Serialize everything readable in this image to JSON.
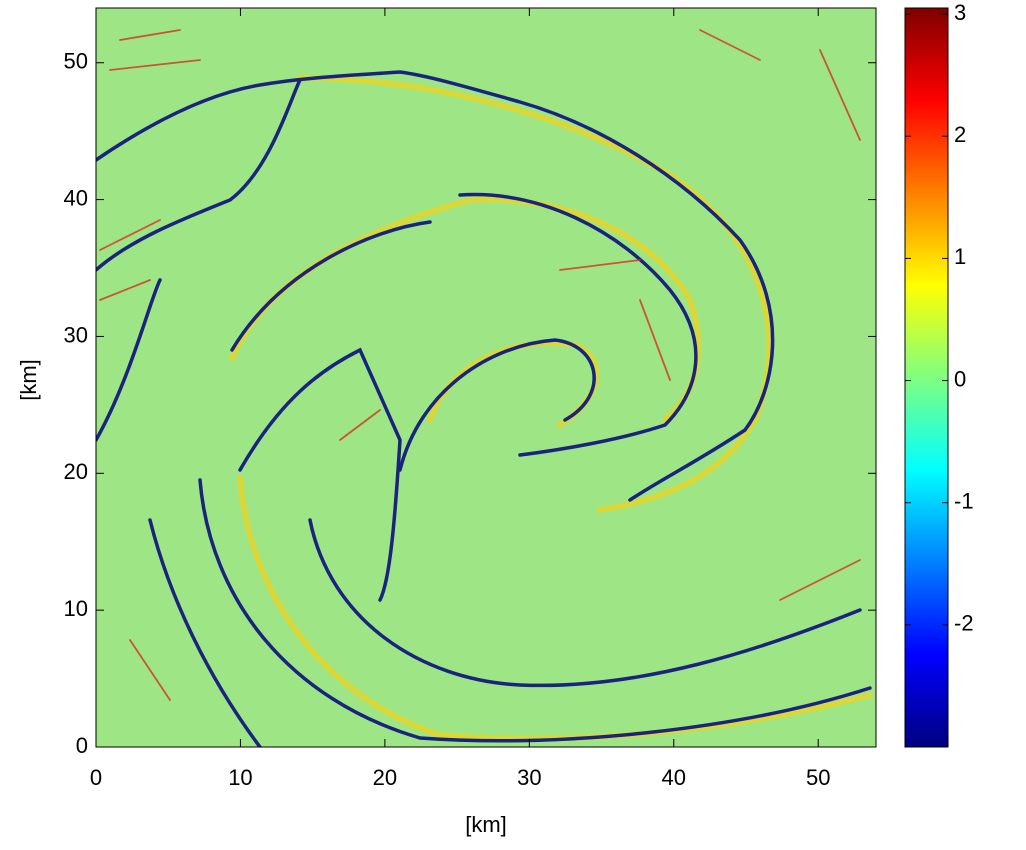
{
  "chart_data": {
    "type": "image",
    "xlabel": "[km]",
    "ylabel": "[km]",
    "xlim": [
      0,
      54
    ],
    "xticks": [
      0,
      10,
      20,
      30,
      40,
      50
    ],
    "ylim": [
      0,
      54
    ],
    "yticks": [
      0,
      10,
      20,
      30,
      40,
      50
    ],
    "colormap": "jet",
    "clim": [
      -3,
      3.05
    ],
    "cticks": [
      -2,
      -1,
      0,
      1,
      2,
      3
    ]
  }
}
